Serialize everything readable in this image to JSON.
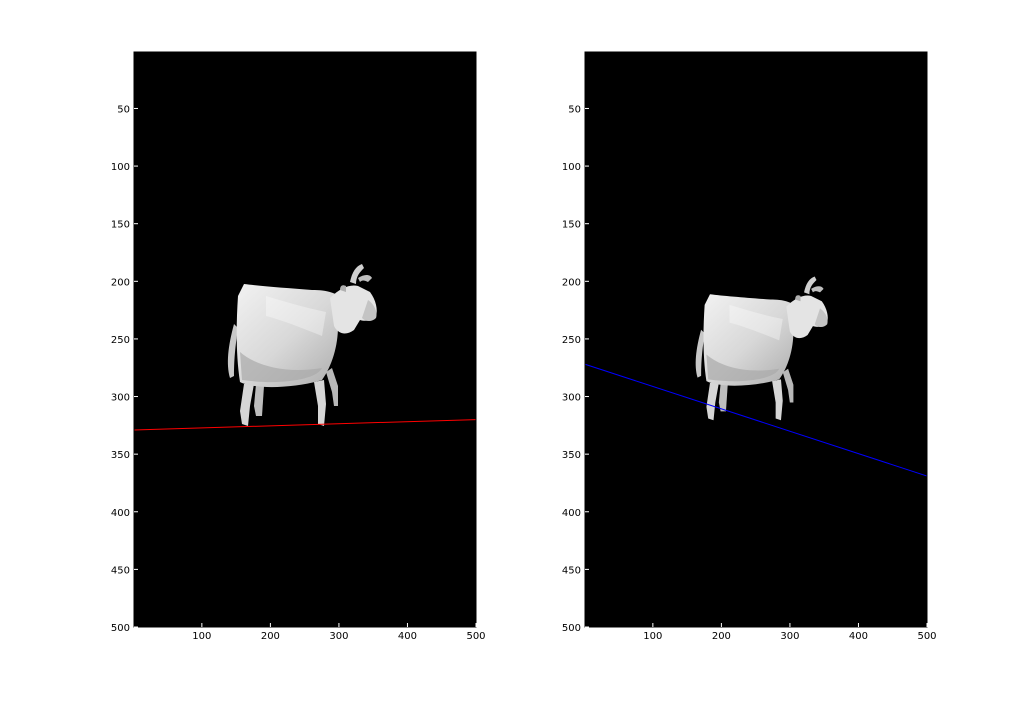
{
  "chart_data": [
    {
      "type": "image",
      "image": "cow-render",
      "xlim": [
        1,
        500
      ],
      "ylim": [
        1,
        500
      ],
      "y_reversed": true,
      "x_ticks": [
        100,
        200,
        300,
        400,
        500
      ],
      "y_ticks": [
        50,
        100,
        150,
        200,
        250,
        300,
        350,
        400,
        450,
        500
      ],
      "background": "#000000",
      "grid": false,
      "line": {
        "color": "#ff0000",
        "x": [
          1,
          500
        ],
        "y": [
          329,
          320
        ]
      }
    },
    {
      "type": "image",
      "image": "cow-render",
      "xlim": [
        1,
        500
      ],
      "ylim": [
        1,
        500
      ],
      "y_reversed": true,
      "x_ticks": [
        100,
        200,
        300,
        400,
        500
      ],
      "y_ticks": [
        50,
        100,
        150,
        200,
        250,
        300,
        350,
        400,
        450,
        500
      ],
      "background": "#000000",
      "grid": false,
      "line": {
        "color": "#0000ff",
        "x": [
          1,
          500
        ],
        "y": [
          272,
          369
        ]
      }
    }
  ]
}
